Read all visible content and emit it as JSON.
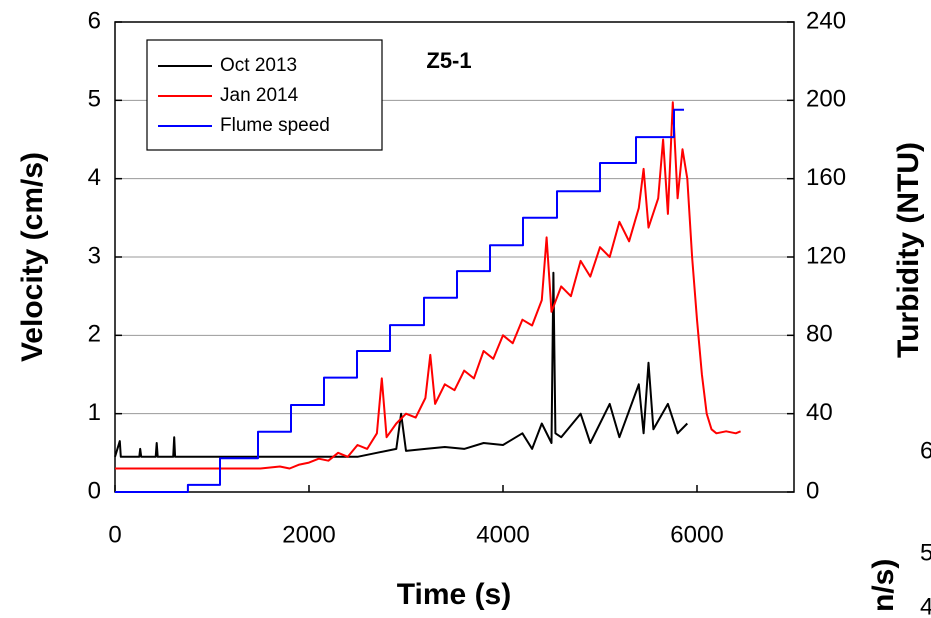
{
  "chart_data": {
    "type": "line",
    "title": "Z5-1",
    "x_label": "Time (s)",
    "y_label": "Velocity (cm/s)",
    "y2_label": "Turbidity (NTU)",
    "xlim": [
      0,
      7000
    ],
    "xticks": [
      0,
      2000,
      4000,
      6000
    ],
    "ylim": [
      0,
      6
    ],
    "yticks": [
      0,
      1,
      2,
      3,
      4,
      5,
      6
    ],
    "y2lim": [
      0,
      240
    ],
    "y2ticks": [
      0,
      40,
      80,
      120,
      160,
      200,
      240
    ],
    "grid": true,
    "legend": "upper left",
    "series": [
      {
        "name": "Oct 2013",
        "color": "#000000",
        "axis": "y2",
        "x": [
          0,
          50,
          60,
          250,
          260,
          270,
          420,
          430,
          440,
          600,
          610,
          620,
          2500,
          2700,
          2900,
          2950,
          3000,
          3200,
          3400,
          3600,
          3800,
          4000,
          4200,
          4300,
          4400,
          4500,
          4520,
          4540,
          4600,
          4800,
          4900,
          5100,
          5200,
          5400,
          5450,
          5500,
          5550,
          5700,
          5800,
          5900
        ],
        "values": [
          18,
          26,
          18,
          18,
          22,
          18,
          18,
          25,
          18,
          18,
          28,
          18,
          18,
          20,
          22,
          40,
          21,
          22,
          23,
          22,
          25,
          24,
          30,
          22,
          35,
          25,
          112,
          30,
          28,
          40,
          25,
          45,
          28,
          55,
          30,
          66,
          32,
          45,
          30,
          35
        ]
      },
      {
        "name": "Jan 2014",
        "color": "#ff0000",
        "axis": "y2",
        "x": [
          0,
          500,
          1000,
          1500,
          1700,
          1800,
          1900,
          2000,
          2100,
          2200,
          2300,
          2400,
          2500,
          2600,
          2700,
          2750,
          2800,
          2900,
          3000,
          3100,
          3200,
          3250,
          3300,
          3400,
          3500,
          3600,
          3700,
          3800,
          3900,
          4000,
          4100,
          4200,
          4300,
          4400,
          4450,
          4500,
          4600,
          4700,
          4800,
          4900,
          5000,
          5100,
          5200,
          5300,
          5400,
          5450,
          5500,
          5600,
          5650,
          5700,
          5750,
          5800,
          5850,
          5900,
          5950,
          6000,
          6050,
          6100,
          6150,
          6200,
          6300,
          6400,
          6450
        ],
        "values": [
          12,
          12,
          12,
          12,
          13,
          12,
          14,
          15,
          17,
          16,
          20,
          18,
          24,
          22,
          30,
          58,
          28,
          35,
          40,
          38,
          48,
          70,
          45,
          55,
          52,
          62,
          58,
          72,
          68,
          80,
          76,
          88,
          85,
          98,
          130,
          92,
          105,
          100,
          118,
          110,
          125,
          120,
          138,
          128,
          145,
          165,
          135,
          150,
          180,
          142,
          199,
          150,
          175,
          160,
          120,
          88,
          60,
          40,
          32,
          30,
          31,
          30,
          31
        ]
      },
      {
        "name": "Flume speed",
        "color": "#0000ff",
        "x": [
          0,
          752,
          752,
          1082,
          1082,
          1474,
          1474,
          1814,
          1814,
          2155,
          2155,
          2495,
          2495,
          2835,
          2835,
          3186,
          3186,
          3526,
          3526,
          3866,
          3866,
          4206,
          4206,
          4557,
          4557,
          5000,
          5000,
          5371,
          5371,
          5763,
          5763,
          5866
        ],
        "values": [
          0,
          0,
          0.09,
          0.09,
          0.43,
          0.43,
          0.77,
          0.77,
          1.11,
          1.11,
          1.46,
          1.46,
          1.8,
          1.8,
          2.13,
          2.13,
          2.48,
          2.48,
          2.82,
          2.82,
          3.15,
          3.15,
          3.5,
          3.5,
          3.84,
          3.84,
          4.2,
          4.2,
          4.53,
          4.53,
          4.88,
          4.88
        ]
      }
    ]
  },
  "cropped_neighbor_text": [
    "6",
    "5",
    "4",
    "n/s)"
  ]
}
